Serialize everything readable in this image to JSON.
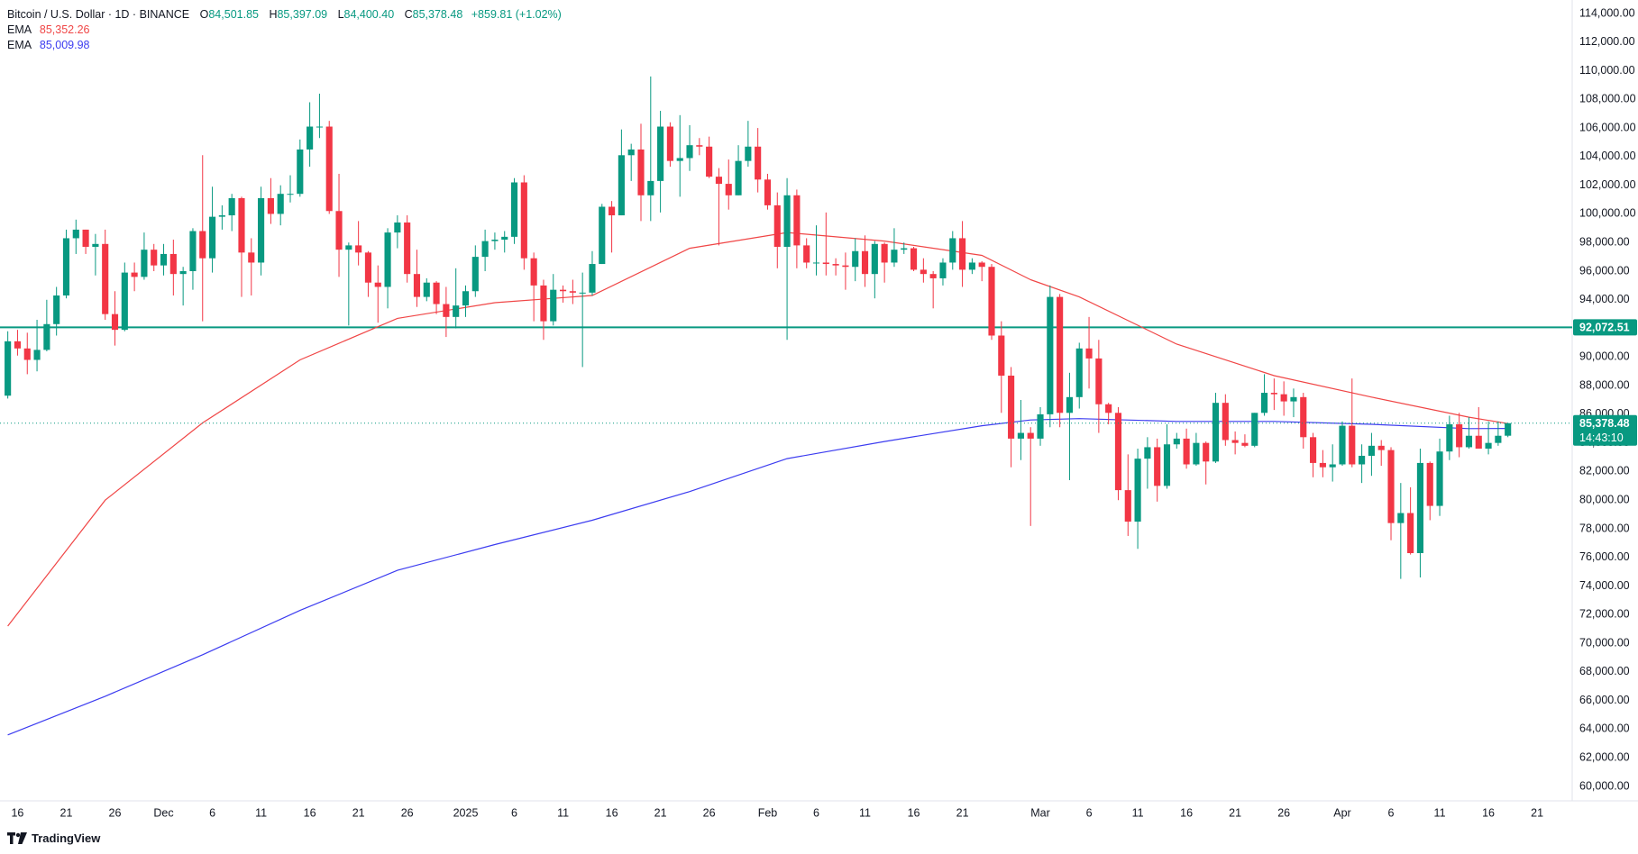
{
  "chart_data": {
    "type": "candlestick",
    "title": "Bitcoin / U.S. Dollar · 1D · BINANCE",
    "ohlc_keys": [
      "O",
      "H",
      "L",
      "C"
    ],
    "ohlc_labels": [
      "84,501.85",
      "85,397.09",
      "84,400.40",
      "85,378.48"
    ],
    "change_label": "+859.81 (+1.02%)",
    "up_color": "#089981",
    "down_color": "#f23645",
    "open": [
      87300,
      91100,
      90600,
      89800,
      90500,
      92300,
      94300,
      98300,
      98900,
      97700,
      97900,
      93000,
      91900,
      95900,
      95600,
      97500,
      96400,
      97200,
      95800,
      96000,
      98800,
      96900,
      99800,
      99900,
      101100,
      97300,
      96600,
      101100,
      100000,
      101400,
      101400,
      104500,
      106100,
      106100,
      100200,
      97500,
      97800,
      97300,
      95200,
      94900,
      98700,
      99400,
      95800,
      94200,
      95200,
      93700,
      92800,
      93600,
      94600,
      97000,
      98100,
      98200,
      98400,
      102200,
      96900,
      95000,
      92500,
      94700,
      94600,
      94500,
      94500,
      96500,
      100500,
      99900,
      104100,
      104500,
      101300,
      102300,
      106100,
      103700,
      103900,
      104800,
      104700,
      102600,
      102100,
      101300,
      103700,
      104700,
      102400,
      100600,
      97700,
      101300,
      97800,
      96600,
      96600,
      96500,
      96400,
      96300,
      97400,
      95800,
      97900,
      96600,
      97500,
      97600,
      96100,
      95800,
      95500,
      96600,
      98300,
      96100,
      96600,
      96300,
      91500,
      88700,
      84300,
      84700,
      84300,
      86000,
      94200,
      86100,
      87200,
      90600,
      89900,
      86700,
      86100,
      80700,
      78500,
      82900,
      83700,
      81000,
      83900,
      84300,
      82500,
      84000,
      82700,
      86800,
      84200,
      84000,
      83800,
      86100,
      87500,
      87400,
      86900,
      87200,
      84400,
      82600,
      82300,
      82500,
      85200,
      82500,
      83100,
      83800,
      83500,
      78400,
      79100,
      76300,
      82600,
      79600,
      83400,
      85300,
      83700,
      84500,
      83600,
      84000,
      84501.85
    ],
    "high": [
      91800,
      91900,
      91700,
      92600,
      94000,
      94900,
      98900,
      99600,
      98900,
      98600,
      98900,
      94600,
      96600,
      96600,
      98700,
      97900,
      97900,
      98200,
      96300,
      99000,
      104100,
      101900,
      100600,
      101400,
      101200,
      98300,
      101900,
      102500,
      102000,
      102700,
      105200,
      107800,
      108400,
      106500,
      102800,
      98000,
      99500,
      97400,
      96400,
      99000,
      99900,
      99900,
      97500,
      95500,
      95300,
      94900,
      96200,
      95000,
      97800,
      98900,
      98700,
      98800,
      102500,
      102700,
      97300,
      95400,
      95800,
      95000,
      95400,
      95900,
      97400,
      100700,
      100900,
      105900,
      104900,
      106300,
      109600,
      107200,
      106400,
      106900,
      106200,
      105300,
      105400,
      103200,
      103800,
      104800,
      106500,
      106000,
      102800,
      101500,
      102500,
      101700,
      98300,
      99200,
      100100,
      96900,
      97300,
      98300,
      98500,
      98100,
      98000,
      99000,
      98000,
      97700,
      96900,
      96000,
      96900,
      98800,
      99500,
      96900,
      96700,
      96500,
      92500,
      89300,
      87000,
      85100,
      86500,
      95000,
      94400,
      88900,
      91000,
      92800,
      91200,
      86800,
      86500,
      83200,
      83600,
      84400,
      84300,
      85300,
      84700,
      85000,
      84700,
      84100,
      87500,
      87400,
      84800,
      84600,
      86100,
      88800,
      88500,
      88300,
      87800,
      87500,
      84700,
      83500,
      83900,
      85500,
      88500,
      83900,
      84700,
      84200,
      83700,
      81200,
      80900,
      83600,
      82700,
      84300,
      85900,
      86100,
      85800,
      86500,
      85500,
      85500,
      85397.09
    ],
    "low": [
      87100,
      90100,
      88800,
      89000,
      90400,
      91500,
      94100,
      97200,
      97200,
      95700,
      92600,
      90800,
      91800,
      94600,
      95400,
      96000,
      95700,
      94300,
      93600,
      94700,
      92500,
      95900,
      98900,
      98800,
      94200,
      94300,
      95700,
      99300,
      99200,
      100800,
      101200,
      103300,
      105300,
      100000,
      95600,
      92200,
      96400,
      94200,
      92400,
      93400,
      97600,
      95200,
      93500,
      93900,
      93000,
      91400,
      92000,
      92800,
      94200,
      96000,
      97500,
      97300,
      97900,
      96100,
      92500,
      91200,
      92200,
      93800,
      93700,
      89300,
      94300,
      96500,
      97300,
      99900,
      102300,
      99500,
      99500,
      100100,
      103300,
      101200,
      103000,
      104100,
      102500,
      97800,
      100300,
      101300,
      103300,
      101500,
      100300,
      96200,
      91200,
      96200,
      96200,
      95700,
      95700,
      95700,
      94700,
      95300,
      94900,
      94100,
      95200,
      96300,
      97200,
      96000,
      95200,
      93400,
      95000,
      96100,
      94900,
      95800,
      95300,
      91200,
      86100,
      82300,
      82800,
      78200,
      83800,
      85100,
      85100,
      81400,
      86400,
      87800,
      84700,
      85300,
      80000,
      77500,
      76600,
      80800,
      79900,
      80800,
      83600,
      82200,
      82400,
      81100,
      82600,
      83800,
      83200,
      83700,
      83700,
      85900,
      86300,
      85900,
      85800,
      83600,
      81600,
      81600,
      81300,
      82400,
      82300,
      81200,
      81700,
      82400,
      77200,
      74500,
      76200,
      74600,
      78600,
      78900,
      82800,
      83000,
      83600,
      83600,
      83200,
      83800,
      84400.4
    ],
    "close": [
      91100,
      90600,
      89800,
      90500,
      92300,
      94300,
      98300,
      98900,
      97700,
      97900,
      93000,
      91900,
      95900,
      95600,
      97500,
      96400,
      97200,
      95800,
      96000,
      98800,
      96900,
      99800,
      99900,
      101100,
      97300,
      96600,
      101100,
      100000,
      101400,
      101400,
      104500,
      106100,
      106100,
      100200,
      97500,
      97800,
      97300,
      95200,
      94900,
      98700,
      99400,
      95800,
      94200,
      95200,
      93700,
      92800,
      93600,
      94600,
      97000,
      98100,
      98200,
      98400,
      102200,
      96900,
      95000,
      92500,
      94700,
      94600,
      94500,
      94500,
      96500,
      100500,
      99900,
      104100,
      104500,
      101300,
      102300,
      106100,
      103700,
      103900,
      104800,
      104700,
      102600,
      102100,
      101300,
      103700,
      104700,
      102400,
      100600,
      97700,
      101300,
      97800,
      96600,
      96600,
      96500,
      96400,
      96300,
      97400,
      95800,
      97900,
      96600,
      97500,
      97600,
      96100,
      95800,
      95500,
      96600,
      98300,
      96100,
      96600,
      96300,
      91500,
      88700,
      84300,
      84700,
      84300,
      86000,
      94200,
      86100,
      87200,
      90600,
      89900,
      86700,
      86100,
      80700,
      78500,
      82900,
      83700,
      81000,
      83900,
      84300,
      82500,
      84000,
      82700,
      86800,
      84200,
      84000,
      83800,
      86100,
      87500,
      87400,
      86900,
      87200,
      84400,
      82600,
      82300,
      82500,
      85200,
      82500,
      83100,
      83800,
      83500,
      78400,
      79100,
      76300,
      82600,
      79600,
      83400,
      85300,
      83700,
      84500,
      83600,
      84000,
      84500,
      85378.48
    ],
    "xlim": [
      -0.8,
      160.6
    ],
    "xticks": [
      {
        "value": 1,
        "label": "16"
      },
      {
        "value": 6,
        "label": "21"
      },
      {
        "value": 11,
        "label": "26"
      },
      {
        "value": 16,
        "label": "Dec"
      },
      {
        "value": 21,
        "label": "6"
      },
      {
        "value": 26,
        "label": "11"
      },
      {
        "value": 31,
        "label": "16"
      },
      {
        "value": 36,
        "label": "21"
      },
      {
        "value": 41,
        "label": "26"
      },
      {
        "value": 47,
        "label": "2025"
      },
      {
        "value": 52,
        "label": "6"
      },
      {
        "value": 57,
        "label": "11"
      },
      {
        "value": 62,
        "label": "16"
      },
      {
        "value": 67,
        "label": "21"
      },
      {
        "value": 72,
        "label": "26"
      },
      {
        "value": 78,
        "label": "Feb"
      },
      {
        "value": 83,
        "label": "6"
      },
      {
        "value": 88,
        "label": "11"
      },
      {
        "value": 93,
        "label": "16"
      },
      {
        "value": 98,
        "label": "21"
      },
      {
        "value": 106,
        "label": "Mar"
      },
      {
        "value": 111,
        "label": "6"
      },
      {
        "value": 116,
        "label": "11"
      },
      {
        "value": 121,
        "label": "16"
      },
      {
        "value": 126,
        "label": "21"
      },
      {
        "value": 131,
        "label": "26"
      },
      {
        "value": 137,
        "label": "Apr"
      },
      {
        "value": 142,
        "label": "6"
      },
      {
        "value": 147,
        "label": "11"
      },
      {
        "value": 152,
        "label": "16"
      },
      {
        "value": 157,
        "label": "21"
      }
    ],
    "ylim": [
      58993,
      114944
    ],
    "yticks": [
      {
        "value": 60000,
        "label": "60,000.00"
      },
      {
        "value": 62000,
        "label": "62,000.00"
      },
      {
        "value": 64000,
        "label": "64,000.00"
      },
      {
        "value": 66000,
        "label": "66,000.00"
      },
      {
        "value": 68000,
        "label": "68,000.00"
      },
      {
        "value": 70000,
        "label": "70,000.00"
      },
      {
        "value": 72000,
        "label": "72,000.00"
      },
      {
        "value": 74000,
        "label": "74,000.00"
      },
      {
        "value": 76000,
        "label": "76,000.00"
      },
      {
        "value": 78000,
        "label": "78,000.00"
      },
      {
        "value": 80000,
        "label": "80,000.00"
      },
      {
        "value": 82000,
        "label": "82,000.00"
      },
      {
        "value": 84000,
        "label": "84,000.00"
      },
      {
        "value": 86000,
        "label": "86,000.00"
      },
      {
        "value": 88000,
        "label": "88,000.00"
      },
      {
        "value": 90000,
        "label": "90,000.00"
      },
      {
        "value": 92000,
        "label": "92,000.00"
      },
      {
        "value": 94000,
        "label": "94,000.00"
      },
      {
        "value": 96000,
        "label": "96,000.00"
      },
      {
        "value": 98000,
        "label": "98,000.00"
      },
      {
        "value": 100000,
        "label": "100,000.00"
      },
      {
        "value": 102000,
        "label": "102,000.00"
      },
      {
        "value": 104000,
        "label": "104,000.00"
      },
      {
        "value": 106000,
        "label": "106,000.00"
      },
      {
        "value": 108000,
        "label": "108,000.00"
      },
      {
        "value": 110000,
        "label": "110,000.00"
      },
      {
        "value": 112000,
        "label": "112,000.00"
      },
      {
        "value": 114000,
        "label": "114,000.00"
      }
    ],
    "grid": false,
    "series": [
      {
        "name": "EMA",
        "color": "#f04646",
        "value_label": "85,352.26",
        "x": [
          0,
          10,
          20,
          30,
          40,
          50,
          60,
          70,
          80,
          90,
          100,
          105,
          110,
          120,
          130,
          140,
          150,
          154
        ],
        "values": [
          71200,
          80000,
          85400,
          89800,
          92700,
          93800,
          94300,
          97600,
          98700,
          98100,
          97100,
          95400,
          94200,
          90900,
          88700,
          87200,
          85800,
          85352.26
        ]
      },
      {
        "name": "EMA",
        "color": "#3c3cf0",
        "value_label": "85,009.98",
        "x": [
          0,
          10,
          20,
          30,
          40,
          50,
          60,
          70,
          80,
          90,
          100,
          105,
          110,
          120,
          130,
          140,
          150,
          154
        ],
        "values": [
          63600,
          66300,
          69200,
          72300,
          75100,
          76900,
          78600,
          80600,
          82900,
          84100,
          85200,
          85600,
          85700,
          85500,
          85500,
          85300,
          85000,
          85009.98
        ]
      }
    ],
    "hlines": [
      {
        "value": 92072.51,
        "label": "92,072.51",
        "color": "#089981"
      }
    ],
    "last_price_label": "85,378.48",
    "countdown": "14:43:10"
  },
  "branding": "TradingView"
}
